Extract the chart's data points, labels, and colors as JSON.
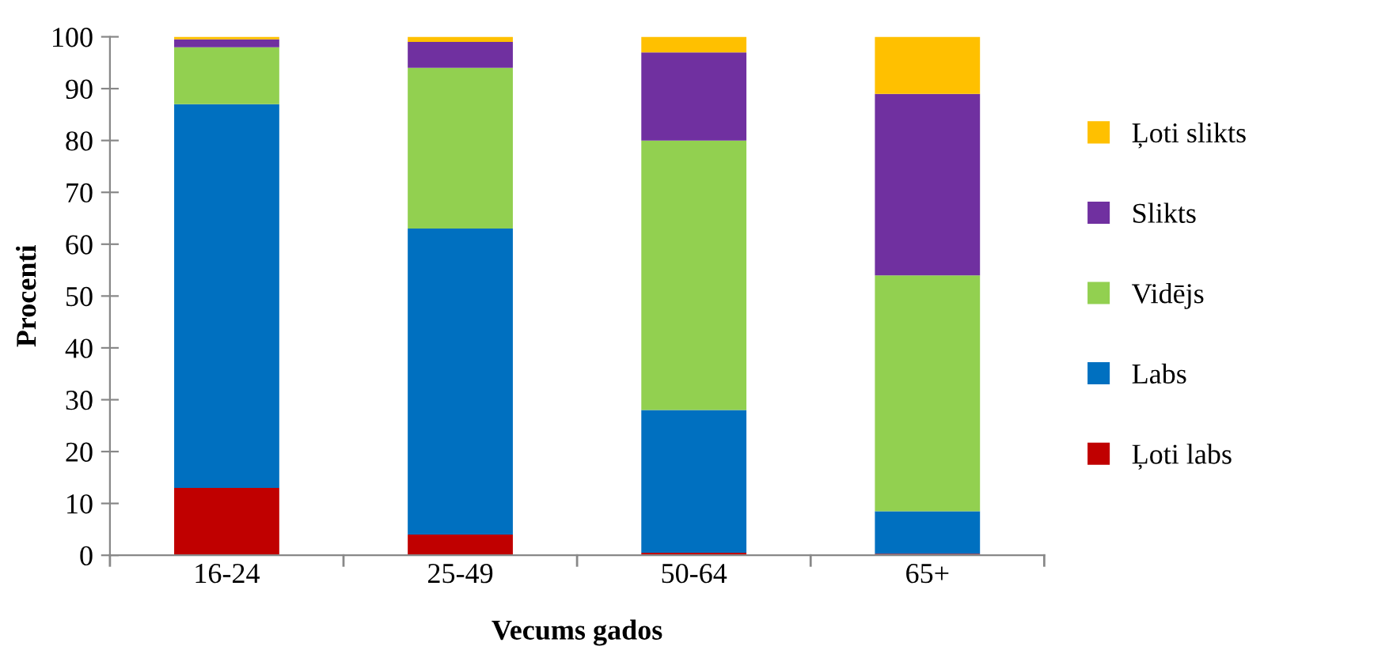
{
  "chart_data": {
    "type": "bar",
    "stacked": true,
    "xlabel": "Vecums gados",
    "ylabel": "Procenti",
    "categories": [
      "16-24",
      "25-49",
      "50-64",
      "65+"
    ],
    "series": [
      {
        "name": "Ļoti labs",
        "color": "#c00000",
        "values": [
          13,
          4,
          0.5,
          0.3
        ]
      },
      {
        "name": "Labs",
        "color": "#0070c0",
        "values": [
          74,
          59,
          27.5,
          8.2
        ]
      },
      {
        "name": "Vidējs",
        "color": "#92d050",
        "values": [
          11,
          31,
          52,
          45.5
        ]
      },
      {
        "name": "Slikts",
        "color": "#7030a0",
        "values": [
          1.5,
          5,
          17,
          35
        ]
      },
      {
        "name": "Ļoti slikts",
        "color": "#ffc000",
        "values": [
          0.5,
          1,
          3,
          11
        ]
      }
    ],
    "ylim": [
      0,
      100
    ],
    "yticks": [
      0,
      10,
      20,
      30,
      40,
      50,
      60,
      70,
      80,
      90,
      100
    ],
    "grid": false,
    "legend": "right"
  }
}
